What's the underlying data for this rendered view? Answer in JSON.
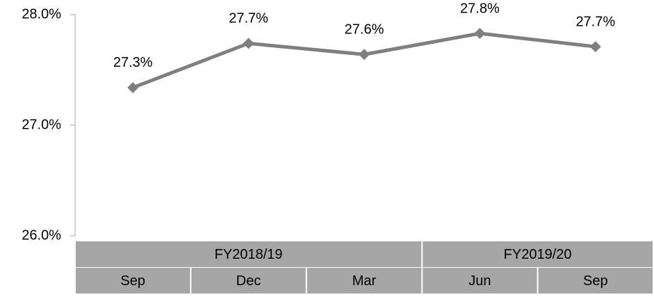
{
  "chart_data": {
    "type": "line",
    "groups": [
      {
        "name": "FY2018/19",
        "categories": [
          "Sep",
          "Dec",
          "Mar"
        ]
      },
      {
        "name": "FY2019/20",
        "categories": [
          "Jun",
          "Sep"
        ]
      }
    ],
    "series": [
      {
        "color": "#7f7f7f",
        "values": [
          27.34,
          27.74,
          27.64,
          27.83,
          27.71
        ],
        "value_labels": [
          "27.3%",
          "27.7%",
          "27.6%",
          "27.8%",
          "27.7%"
        ]
      }
    ],
    "ylim": [
      26,
      28
    ],
    "yticks": [
      {
        "value": 26,
        "label": "26.0%"
      },
      {
        "value": 27,
        "label": "27.0%"
      },
      {
        "value": 28,
        "label": "28.0%"
      }
    ],
    "grid": false,
    "marker": "diamond",
    "category_fill": "#a6a6a6"
  }
}
